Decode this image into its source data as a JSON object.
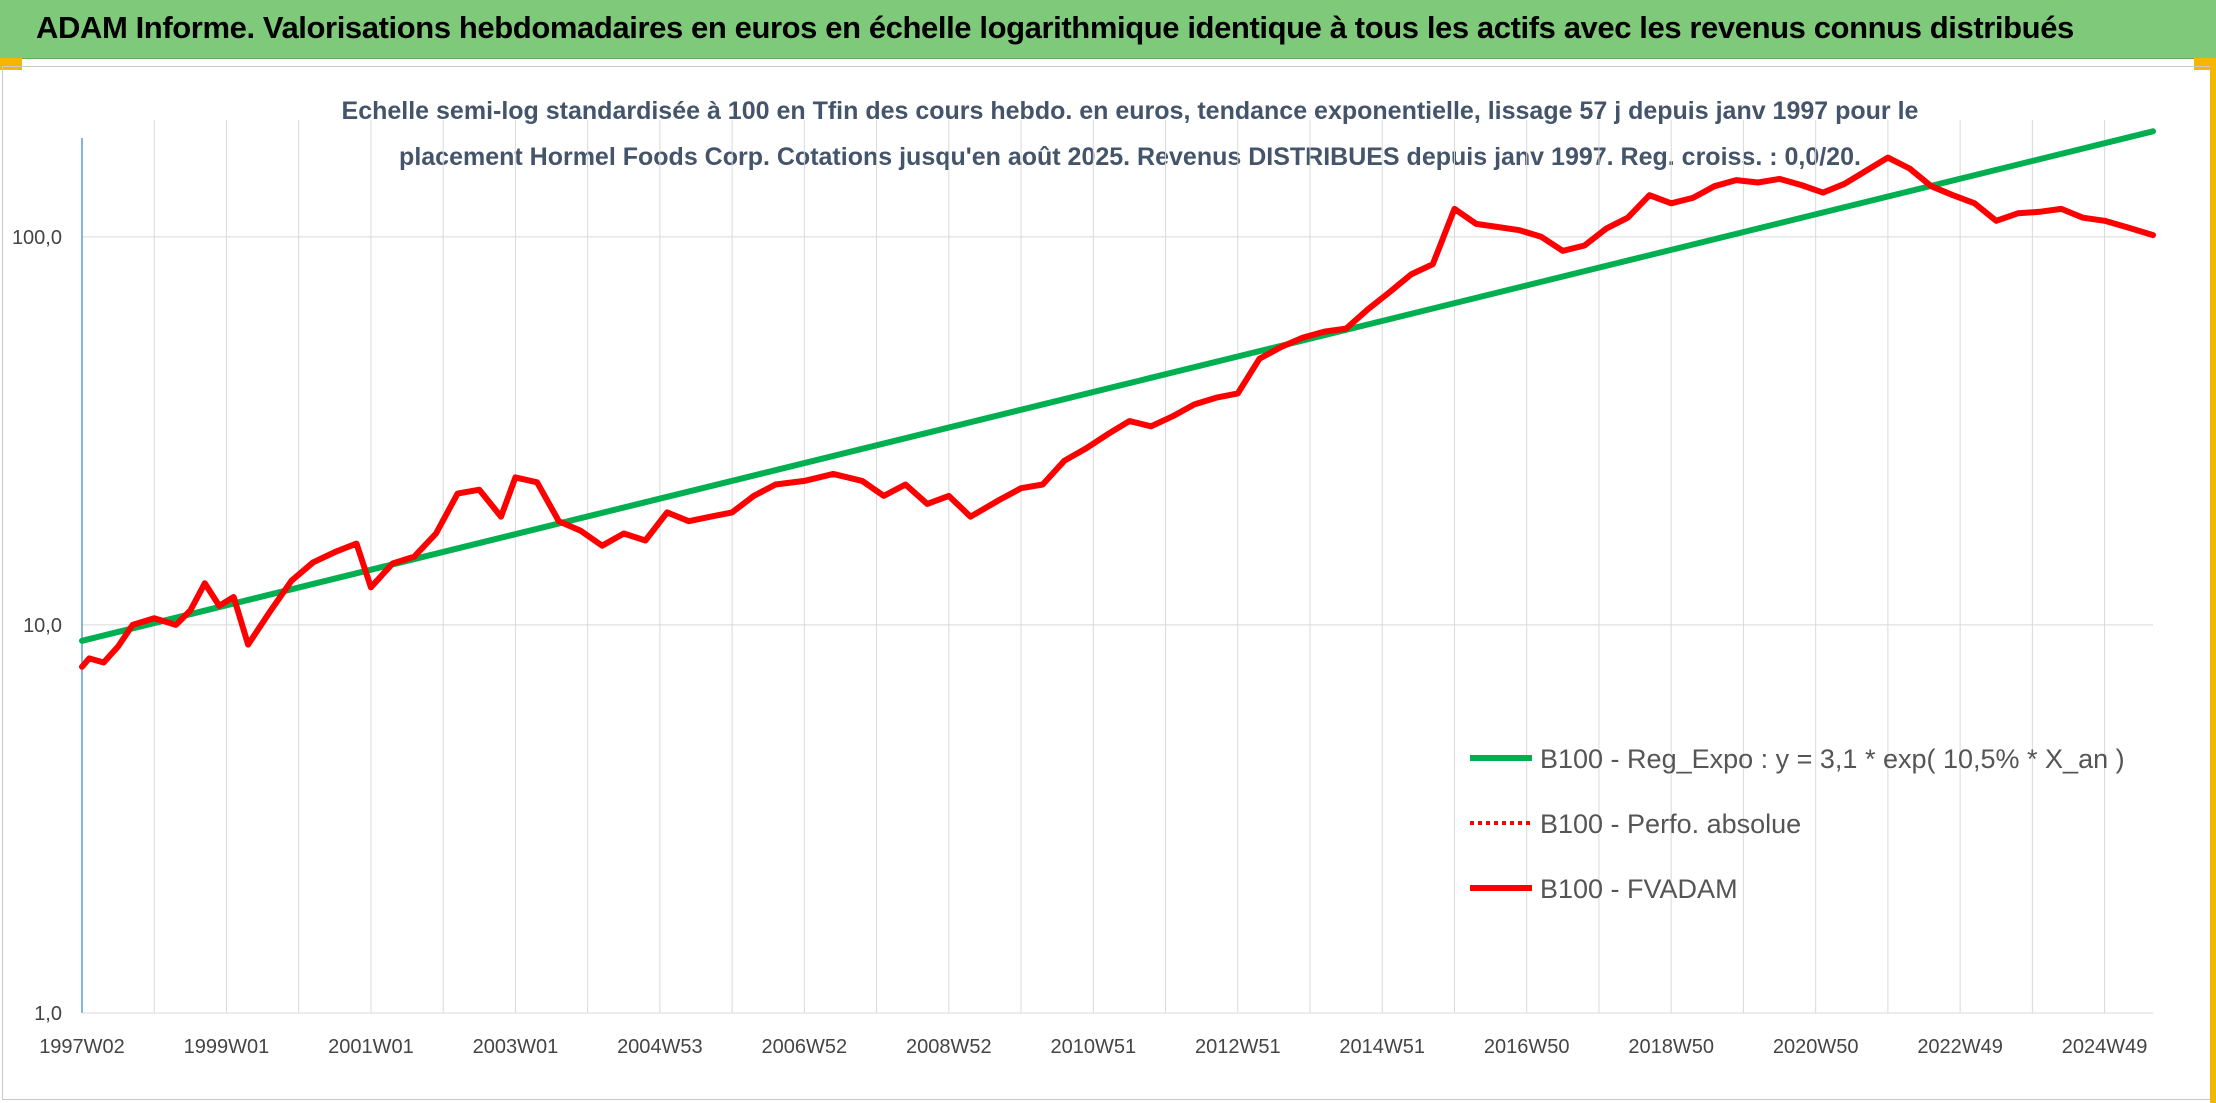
{
  "header": {
    "title": "ADAM Informe. Valorisations hebdomadaires en euros en échelle logarithmique identique à tous les actifs avec les revenus connus distribués"
  },
  "chart_data": {
    "type": "line",
    "title_line1": "Echelle semi-log standardisée à 100 en Tfin des cours hebdo. en euros, tendance exponentielle, lissage 57 j depuis janv 1997 pour le",
    "title_line2": "placement Hormel Foods Corp. Cotations jusqu'en août 2025. Revenus DISTRIBUES depuis janv 1997. Reg. croiss. : 0,0/20.",
    "y_scale": "log",
    "ylim": [
      1,
      200
    ],
    "y_ticks": [
      {
        "value": 1,
        "label": "1,0"
      },
      {
        "value": 10,
        "label": "10,0"
      },
      {
        "value": 100,
        "label": "100,0"
      }
    ],
    "xlim": [
      1997.0,
      2025.67
    ],
    "x_ticks": [
      {
        "value": 1997.0,
        "label": "1997W02"
      },
      {
        "value": 1999.0,
        "label": "1999W01"
      },
      {
        "value": 2001.0,
        "label": "2001W01"
      },
      {
        "value": 2003.0,
        "label": "2003W01"
      },
      {
        "value": 2005.0,
        "label": "2004W53"
      },
      {
        "value": 2007.0,
        "label": "2006W52"
      },
      {
        "value": 2009.0,
        "label": "2008W52"
      },
      {
        "value": 2011.0,
        "label": "2010W51"
      },
      {
        "value": 2013.0,
        "label": "2012W51"
      },
      {
        "value": 2015.0,
        "label": "2014W51"
      },
      {
        "value": 2017.0,
        "label": "2016W50"
      },
      {
        "value": 2019.0,
        "label": "2018W50"
      },
      {
        "value": 2021.0,
        "label": "2020W50"
      },
      {
        "value": 2023.0,
        "label": "2022W49"
      },
      {
        "value": 2025.0,
        "label": "2024W49"
      }
    ],
    "grid": true,
    "legend_position": "bottom-right",
    "series": [
      {
        "name": "B100 - Reg_Expo : y = 3,1 * exp( 10,5% *  X_an )",
        "color": "#00b050",
        "style": "solid",
        "x": [
          1997.0,
          2025.67
        ],
        "y": [
          9.1,
          187
        ]
      },
      {
        "name": "B100 - Perfo. absolue",
        "color": "#ff0000",
        "style": "dotted",
        "x": [],
        "y": []
      },
      {
        "name": "B100 - FVADAM",
        "color": "#ff0000",
        "style": "solid",
        "x": [
          1997.0,
          1997.1,
          1997.3,
          1997.5,
          1997.7,
          1998.0,
          1998.3,
          1998.5,
          1998.7,
          1998.9,
          1999.1,
          1999.3,
          1999.6,
          1999.9,
          2000.2,
          2000.5,
          2000.8,
          2001.0,
          2001.3,
          2001.6,
          2001.9,
          2002.2,
          2002.5,
          2002.8,
          2003.0,
          2003.3,
          2003.6,
          2003.9,
          2004.2,
          2004.5,
          2004.8,
          2005.1,
          2005.4,
          2005.7,
          2006.0,
          2006.3,
          2006.6,
          2007.0,
          2007.4,
          2007.8,
          2008.1,
          2008.4,
          2008.7,
          2009.0,
          2009.3,
          2009.7,
          2010.0,
          2010.3,
          2010.6,
          2010.9,
          2011.2,
          2011.5,
          2011.8,
          2012.1,
          2012.4,
          2012.7,
          2013.0,
          2013.3,
          2013.6,
          2013.9,
          2014.2,
          2014.5,
          2014.8,
          2015.1,
          2015.4,
          2015.7,
          2016.0,
          2016.3,
          2016.6,
          2016.9,
          2017.2,
          2017.5,
          2017.8,
          2018.1,
          2018.4,
          2018.7,
          2019.0,
          2019.3,
          2019.6,
          2019.9,
          2020.2,
          2020.5,
          2020.8,
          2021.1,
          2021.4,
          2021.7,
          2022.0,
          2022.3,
          2022.6,
          2022.9,
          2023.2,
          2023.5,
          2023.8,
          2024.1,
          2024.4,
          2024.7,
          2025.0,
          2025.3,
          2025.67
        ],
        "y": [
          7.8,
          8.2,
          8.0,
          8.8,
          10.0,
          10.4,
          10.0,
          10.9,
          12.8,
          11.2,
          11.8,
          8.9,
          10.8,
          13.0,
          14.5,
          15.4,
          16.2,
          12.5,
          14.4,
          15.0,
          17.2,
          21.8,
          22.3,
          19.0,
          24.0,
          23.3,
          18.5,
          17.5,
          16.0,
          17.2,
          16.5,
          19.5,
          18.5,
          19.0,
          19.5,
          21.5,
          23.0,
          23.5,
          24.5,
          23.5,
          21.5,
          23.0,
          20.5,
          21.5,
          19.0,
          21.0,
          22.5,
          23.0,
          26.5,
          28.5,
          31.0,
          33.5,
          32.5,
          34.5,
          37.0,
          38.5,
          39.5,
          48.5,
          52.0,
          55.0,
          57.0,
          58.0,
          65.0,
          72.0,
          80.0,
          85.0,
          118.0,
          108.0,
          106.0,
          104.0,
          100.0,
          92.0,
          95.0,
          105.0,
          112.0,
          128.0,
          122.0,
          126.0,
          135.0,
          140.0,
          138.0,
          141.0,
          136.0,
          130.0,
          137.0,
          148.0,
          160.0,
          150.0,
          135.0,
          128.0,
          122.0,
          110.0,
          115.0,
          116.0,
          118.0,
          112.0,
          110.0,
          106.0,
          101.0
        ]
      }
    ]
  }
}
